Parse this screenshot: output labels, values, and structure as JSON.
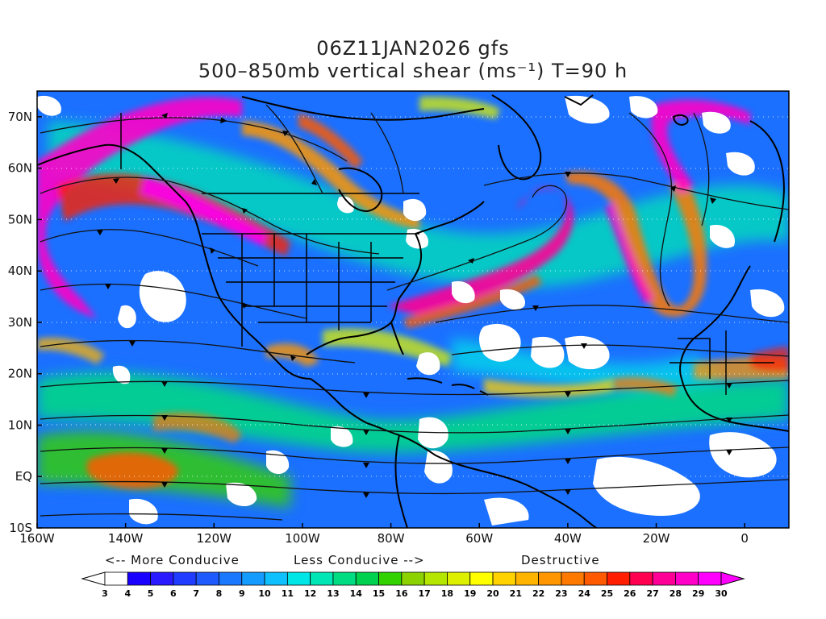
{
  "header": {
    "line1": "06Z11JAN2026 gfs",
    "line2": "500–850mb vertical shear (ms⁻¹) T=90 h"
  },
  "axes": {
    "lon_labels": [
      "160W",
      "140W",
      "120W",
      "100W",
      "80W",
      "60W",
      "40W",
      "20W",
      "0"
    ],
    "lon_values": [
      -160,
      -140,
      -120,
      -100,
      -80,
      -60,
      -40,
      -20,
      0
    ],
    "lat_labels": [
      "70N",
      "60N",
      "50N",
      "40N",
      "30N",
      "20N",
      "10N",
      "EQ",
      "10S"
    ],
    "lat_values": [
      70,
      60,
      50,
      40,
      30,
      20,
      10,
      0,
      -10
    ],
    "lon_range": [
      -160,
      10
    ],
    "lat_range": [
      -10,
      75
    ]
  },
  "guide": {
    "more_conducive": "<-- More Conducive",
    "less_conducive": "Less Conducive -->",
    "destructive": "Destructive"
  },
  "colorbar": {
    "labels": [
      "3",
      "4",
      "5",
      "6",
      "7",
      "8",
      "9",
      "10",
      "11",
      "12",
      "13",
      "14",
      "15",
      "16",
      "17",
      "18",
      "19",
      "20",
      "21",
      "22",
      "23",
      "24",
      "25",
      "26",
      "27",
      "28",
      "29",
      "30"
    ],
    "colors": [
      "#ffffff",
      "#1a00ff",
      "#2a1aff",
      "#1f3cff",
      "#1f5aff",
      "#1a78ff",
      "#149bff",
      "#0fc0ff",
      "#00e6e6",
      "#00e6b4",
      "#00dc82",
      "#00d250",
      "#32d200",
      "#8cd200",
      "#b4e600",
      "#dcf000",
      "#ffff00",
      "#ffd200",
      "#ffb400",
      "#ff9600",
      "#ff7800",
      "#ff5a00",
      "#ff1e00",
      "#ff0050",
      "#ff0096",
      "#ff00c8",
      "#ff00ff"
    ],
    "left_arrow_color": "#ffffff",
    "right_arrow_color": "#ff00ff"
  }
}
